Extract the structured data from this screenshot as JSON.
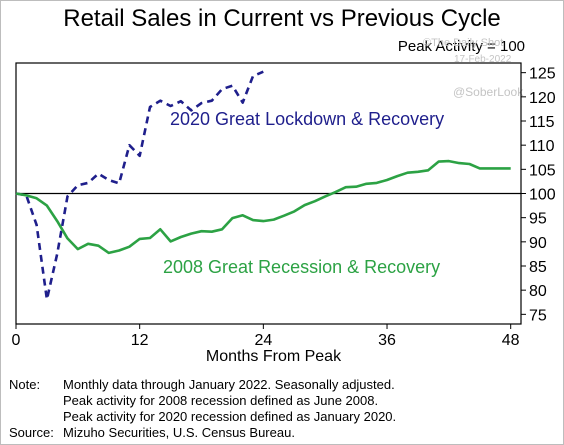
{
  "chart_data": {
    "type": "line",
    "title": "Retail Sales in Current vs Previous Cycle",
    "subtitle": "Peak Activity = 100",
    "xlabel": "Months From Peak",
    "ylabel": "",
    "xlim": [
      0,
      49
    ],
    "ylim": [
      73,
      127
    ],
    "xticks": [
      0,
      12,
      24,
      36,
      48
    ],
    "yticks": [
      75,
      80,
      85,
      90,
      95,
      100,
      105,
      110,
      115,
      120,
      125
    ],
    "series": [
      {
        "name": "2020 Great Lockdown & Recovery",
        "color": "#1f1f8c",
        "style": "dashed",
        "x": [
          0,
          1,
          2,
          3,
          4,
          5,
          6,
          7,
          8,
          9,
          10,
          11,
          12,
          13,
          14,
          15,
          16,
          17,
          18,
          19,
          20,
          21,
          22,
          23,
          24
        ],
        "y": [
          100,
          99.6,
          93.5,
          78.1,
          87.5,
          99.4,
          101.7,
          102.2,
          104.1,
          102.8,
          102.1,
          110.0,
          107.8,
          117.9,
          119.2,
          118.1,
          119.1,
          117.2,
          118.7,
          119.2,
          121.6,
          122.3,
          118.8,
          124.3,
          125.2
        ]
      },
      {
        "name": "2008 Great Recession & Recovery",
        "color": "#2ca244",
        "style": "solid",
        "x": [
          0,
          1,
          2,
          3,
          4,
          5,
          6,
          7,
          8,
          9,
          10,
          11,
          12,
          13,
          14,
          15,
          16,
          17,
          18,
          19,
          20,
          21,
          22,
          23,
          24,
          25,
          26,
          27,
          28,
          29,
          30,
          31,
          32,
          33,
          34,
          35,
          36,
          37,
          38,
          39,
          40,
          41,
          42,
          43,
          44,
          45,
          46,
          47,
          48
        ],
        "y": [
          100,
          99.6,
          99.0,
          97.5,
          94.3,
          90.7,
          88.5,
          89.6,
          89.2,
          87.7,
          88.2,
          89.0,
          90.6,
          90.8,
          92.6,
          90.1,
          91.0,
          91.7,
          92.2,
          92.1,
          92.6,
          94.9,
          95.5,
          94.5,
          94.3,
          94.6,
          95.4,
          96.3,
          97.6,
          98.4,
          99.4,
          100.3,
          101.3,
          101.4,
          102.0,
          102.2,
          102.8,
          103.6,
          104.3,
          104.5,
          104.8,
          106.6,
          106.7,
          106.3,
          106.1,
          105.2,
          105.2,
          105.2,
          105.2
        ]
      }
    ],
    "annotations": [
      {
        "text": "2020 Great Lockdown & Recovery",
        "color": "#1f1f8c"
      },
      {
        "text": "2008 Great Recession & Recovery",
        "color": "#2ca244"
      }
    ]
  },
  "watermark": {
    "line1": "©The Daily Shot",
    "line2": "17-Feb-2022",
    "line3": "@SoberLook"
  },
  "notes": {
    "label1": "Note:",
    "line1": "Monthly data through January 2022. Seasonally adjusted.",
    "line2": "Peak activity for 2008 recession defined as June 2008.",
    "line3": "Peak activity for 2020 recession defined as January 2020.",
    "label2": "Source:",
    "line4": "Mizuho Securities, U.S. Census Bureau."
  }
}
